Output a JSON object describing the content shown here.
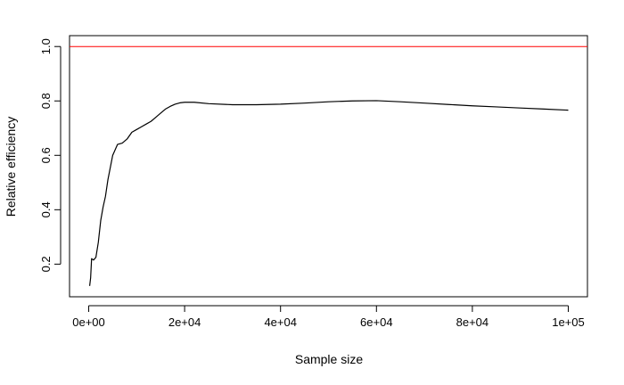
{
  "chart_data": {
    "type": "line",
    "title": "",
    "xlabel": "Sample size",
    "ylabel": "Relative efficiency",
    "xlim": [
      -4000,
      104000
    ],
    "ylim": [
      0.08,
      1.04
    ],
    "x_ticks": [
      {
        "value": 0,
        "label": "0e+00"
      },
      {
        "value": 20000,
        "label": "2e+04"
      },
      {
        "value": 40000,
        "label": "4e+04"
      },
      {
        "value": 60000,
        "label": "6e+04"
      },
      {
        "value": 80000,
        "label": "8e+04"
      },
      {
        "value": 100000,
        "label": "1e+05"
      }
    ],
    "y_ticks": [
      {
        "value": 0.2,
        "label": "0.2"
      },
      {
        "value": 0.4,
        "label": "0.4"
      },
      {
        "value": 0.6,
        "label": "0.6"
      },
      {
        "value": 0.8,
        "label": "0.8"
      },
      {
        "value": 1.0,
        "label": "1.0"
      }
    ],
    "grid": false,
    "reference_line": {
      "y": 1.0,
      "color": "#ff0000"
    },
    "series": [
      {
        "color": "#000000",
        "x": [
          200,
          400,
          600,
          1000,
          1500,
          2000,
          2500,
          3000,
          3500,
          4000,
          5000,
          6000,
          7000,
          8000,
          9000,
          10000,
          11000,
          12000,
          13000,
          14000,
          15000,
          16000,
          17000,
          18000,
          19000,
          20000,
          22000,
          25000,
          30000,
          35000,
          40000,
          45000,
          50000,
          55000,
          60000,
          65000,
          70000,
          75000,
          80000,
          85000,
          90000,
          95000,
          100000
        ],
        "y": [
          0.12,
          0.15,
          0.22,
          0.215,
          0.225,
          0.28,
          0.36,
          0.41,
          0.45,
          0.51,
          0.6,
          0.64,
          0.645,
          0.66,
          0.685,
          0.695,
          0.705,
          0.715,
          0.725,
          0.74,
          0.755,
          0.77,
          0.78,
          0.788,
          0.793,
          0.795,
          0.795,
          0.79,
          0.786,
          0.786,
          0.788,
          0.792,
          0.797,
          0.8,
          0.801,
          0.797,
          0.792,
          0.787,
          0.782,
          0.778,
          0.774,
          0.77,
          0.766
        ]
      }
    ]
  }
}
